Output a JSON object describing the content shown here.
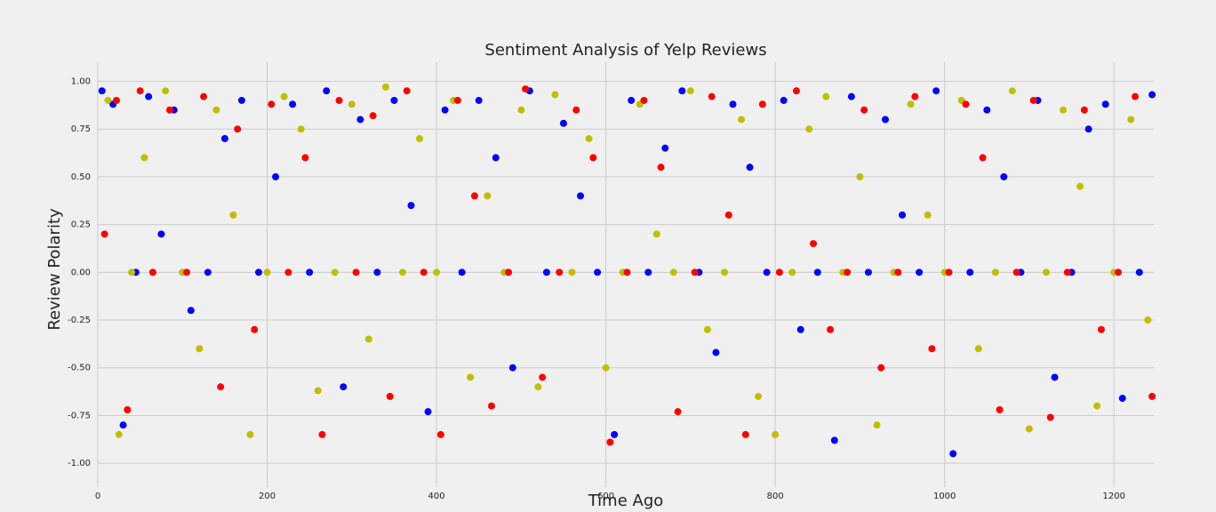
{
  "chart_data": {
    "type": "scatter",
    "title": "Sentiment Analysis of Yelp Reviews",
    "x_label": "Time Ago",
    "y_label": "Review Polarity",
    "xlim": [
      0,
      1247
    ],
    "ylim": [
      -1.125,
      1.1
    ],
    "xticks": [
      0,
      200,
      400,
      600,
      800,
      1000,
      1200
    ],
    "yticks": [
      {
        "value": -1,
        "label": "-1.00"
      },
      {
        "value": -0.75,
        "label": "-0.75"
      },
      {
        "value": -0.5,
        "label": "-0.50"
      },
      {
        "value": -0.25,
        "label": "-0.25"
      },
      {
        "value": 0,
        "label": "0.00"
      },
      {
        "value": 0.25,
        "label": "0.25"
      },
      {
        "value": 0.5,
        "label": "0.50"
      },
      {
        "value": 0.75,
        "label": "0.75"
      },
      {
        "value": 1,
        "label": "1.00"
      }
    ],
    "grid": true,
    "series": [
      {
        "color": "#0000ff",
        "x": [
          5,
          18,
          30,
          45,
          60,
          75,
          90,
          110,
          130,
          150,
          170,
          190,
          210,
          230,
          250,
          270,
          290,
          310,
          330,
          350,
          370,
          390,
          410,
          430,
          450,
          470,
          490,
          510,
          530,
          550,
          570,
          590,
          610,
          630,
          650,
          670,
          690,
          710,
          730,
          750,
          770,
          790,
          810,
          830,
          850,
          870,
          890,
          910,
          930,
          950,
          970,
          990,
          1010,
          1030,
          1050,
          1070,
          1090,
          1110,
          1130,
          1150,
          1170,
          1190,
          1210,
          1230,
          1245
        ],
        "values": [
          0.95,
          0.88,
          -0.8,
          0,
          0.92,
          0.2,
          0.85,
          -0.2,
          0,
          0.7,
          0.9,
          0,
          0.5,
          0.88,
          0,
          0.95,
          -0.6,
          0.8,
          0,
          0.9,
          0.35,
          -0.73,
          0.85,
          0,
          0.9,
          0.6,
          -0.5,
          0.95,
          0,
          0.78,
          0.4,
          0,
          -0.85,
          0.9,
          0,
          0.65,
          0.95,
          0,
          -0.42,
          0.88,
          0.55,
          0,
          0.9,
          -0.3,
          0,
          -0.88,
          0.92,
          0,
          0.8,
          0.3,
          0,
          0.95,
          -0.95,
          0,
          0.85,
          0.5,
          0,
          0.9,
          -0.55,
          0,
          0.75,
          0.88,
          -0.66,
          0,
          0.93
        ]
      },
      {
        "color": "#bfbf00",
        "x": [
          12,
          25,
          40,
          55,
          80,
          100,
          120,
          140,
          160,
          180,
          200,
          220,
          240,
          260,
          280,
          300,
          320,
          340,
          360,
          380,
          400,
          420,
          440,
          460,
          480,
          500,
          520,
          540,
          560,
          580,
          600,
          620,
          640,
          660,
          680,
          700,
          720,
          740,
          760,
          780,
          800,
          820,
          840,
          860,
          880,
          900,
          920,
          940,
          960,
          980,
          1000,
          1020,
          1040,
          1060,
          1080,
          1100,
          1120,
          1140,
          1160,
          1180,
          1200,
          1220,
          1240
        ],
        "values": [
          0.9,
          -0.85,
          0,
          0.6,
          0.95,
          0,
          -0.4,
          0.85,
          0.3,
          -0.85,
          0,
          0.92,
          0.75,
          -0.62,
          0,
          0.88,
          -0.35,
          0.97,
          0,
          0.7,
          0,
          0.9,
          -0.55,
          0.4,
          0,
          0.85,
          -0.6,
          0.93,
          0,
          0.7,
          -0.5,
          0,
          0.88,
          0.2,
          0,
          0.95,
          -0.3,
          0,
          0.8,
          -0.65,
          -0.85,
          0,
          0.75,
          0.92,
          0,
          0.5,
          -0.8,
          0,
          0.88,
          0.3,
          0,
          0.9,
          -0.4,
          0,
          0.95,
          -0.82,
          0,
          0.85,
          0.45,
          -0.7,
          0,
          0.8,
          -0.25
        ]
      },
      {
        "color": "#ff0000",
        "x": [
          8,
          22,
          35,
          50,
          65,
          85,
          105,
          125,
          145,
          165,
          185,
          205,
          225,
          245,
          265,
          285,
          305,
          325,
          345,
          365,
          385,
          405,
          425,
          445,
          465,
          485,
          505,
          525,
          545,
          565,
          585,
          605,
          625,
          645,
          665,
          685,
          705,
          725,
          745,
          765,
          785,
          805,
          825,
          845,
          865,
          885,
          905,
          925,
          945,
          965,
          985,
          1005,
          1025,
          1045,
          1065,
          1085,
          1105,
          1125,
          1145,
          1165,
          1185,
          1205,
          1225,
          1245
        ],
        "values": [
          0.2,
          0.9,
          -0.72,
          0.95,
          0,
          0.85,
          0,
          0.92,
          -0.6,
          0.75,
          -0.3,
          0.88,
          0,
          0.6,
          -0.85,
          0.9,
          0,
          0.82,
          -0.65,
          0.95,
          0,
          -0.85,
          0.9,
          0.4,
          -0.7,
          0,
          0.96,
          -0.55,
          0,
          0.85,
          0.6,
          -0.89,
          0,
          0.9,
          0.55,
          -0.73,
          0,
          0.92,
          0.3,
          -0.85,
          0.88,
          0,
          0.95,
          0.15,
          -0.3,
          0,
          0.85,
          -0.5,
          0,
          0.92,
          -0.4,
          0,
          0.88,
          0.6,
          -0.72,
          0,
          0.9,
          -0.76,
          0,
          0.85,
          -0.3,
          0,
          0.92,
          -0.65
        ]
      }
    ]
  }
}
